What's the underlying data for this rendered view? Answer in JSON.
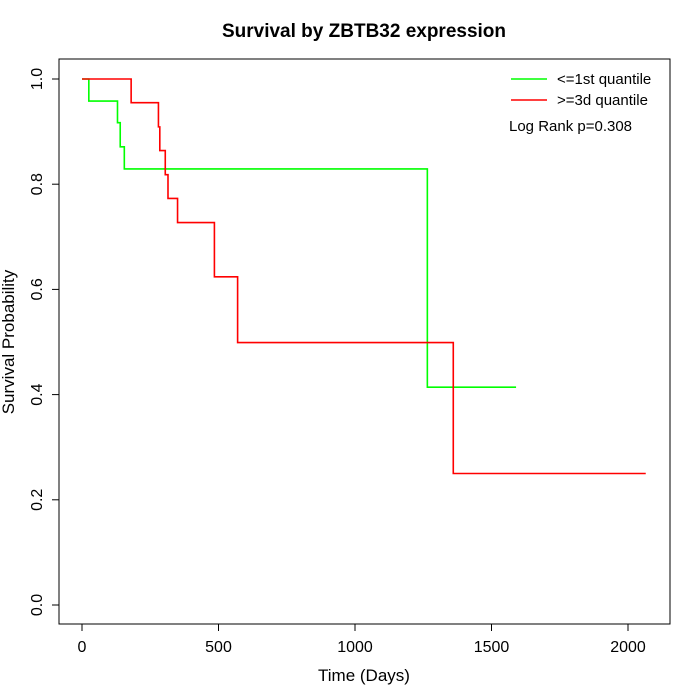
{
  "chart_data": {
    "type": "line",
    "title": "Survival by ZBTB32 expression",
    "xlabel": "Time (Days)",
    "ylabel": "Survival Probability",
    "xlim": [
      0,
      2070
    ],
    "ylim": [
      0,
      1.0
    ],
    "x_ticks": [
      0,
      500,
      1000,
      1500,
      2000
    ],
    "x_tick_labels": [
      "0",
      "500",
      "1000",
      "1500",
      "2000"
    ],
    "y_ticks": [
      0.0,
      0.2,
      0.4,
      0.6,
      0.8,
      1.0
    ],
    "y_tick_labels": [
      "0.0",
      "0.2",
      "0.4",
      "0.6",
      "0.8",
      "1.0"
    ],
    "grid": false,
    "legend_position": "top-right",
    "annotation": "Log Rank p=0.308",
    "series": [
      {
        "name": "<=1st quantile",
        "color": "#00ff00",
        "x": [
          0,
          25,
          130,
          140,
          155,
          1265,
          1590
        ],
        "y": [
          1.0,
          0.958,
          0.917,
          0.871,
          0.829,
          0.414,
          0.414
        ]
      },
      {
        "name": ">=3d quantile",
        "color": "#ff0000",
        "x": [
          0,
          180,
          280,
          285,
          305,
          315,
          350,
          485,
          570,
          1360,
          2065
        ],
        "y": [
          1.0,
          0.955,
          0.909,
          0.864,
          0.818,
          0.773,
          0.727,
          0.624,
          0.499,
          0.25,
          0.25
        ]
      }
    ]
  }
}
